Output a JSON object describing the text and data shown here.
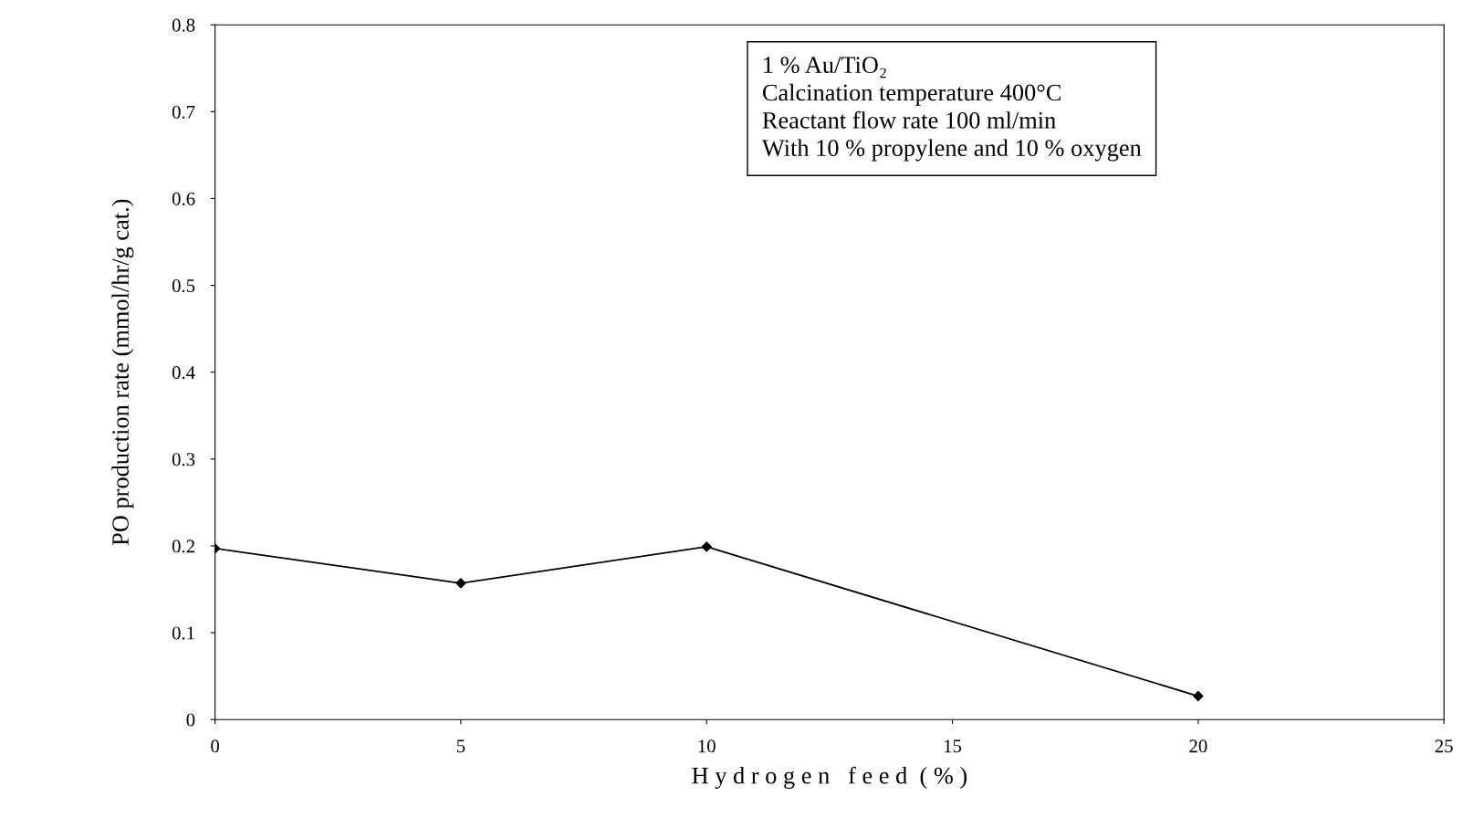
{
  "chart_data": {
    "type": "line",
    "xlabel": "H y d r o g e n   f e e d  ( % )",
    "ylabel": "PO production rate (mmol/hr/g cat.)",
    "x": [
      0,
      5,
      10,
      20
    ],
    "series": [
      {
        "color": "#000000",
        "values": [
          0.197,
          0.157,
          0.199,
          0.027
        ]
      }
    ],
    "xlim": [
      0,
      25
    ],
    "xticks": [
      0,
      5,
      10,
      15,
      20,
      25
    ],
    "ylim": [
      0,
      0.8
    ],
    "yticks": [
      0,
      0.1,
      0.2,
      0.3,
      0.4,
      0.5,
      0.6,
      0.7,
      0.8
    ],
    "marker": "diamond",
    "line_style": "solid",
    "grid": false,
    "legend": false,
    "annotations": [
      "1 % Au/TiO₂",
      "Calcination temperature 400°C",
      "Reactant flow rate 100 ml/min",
      "With 10 % propylene and 10 % oxygen"
    ]
  }
}
